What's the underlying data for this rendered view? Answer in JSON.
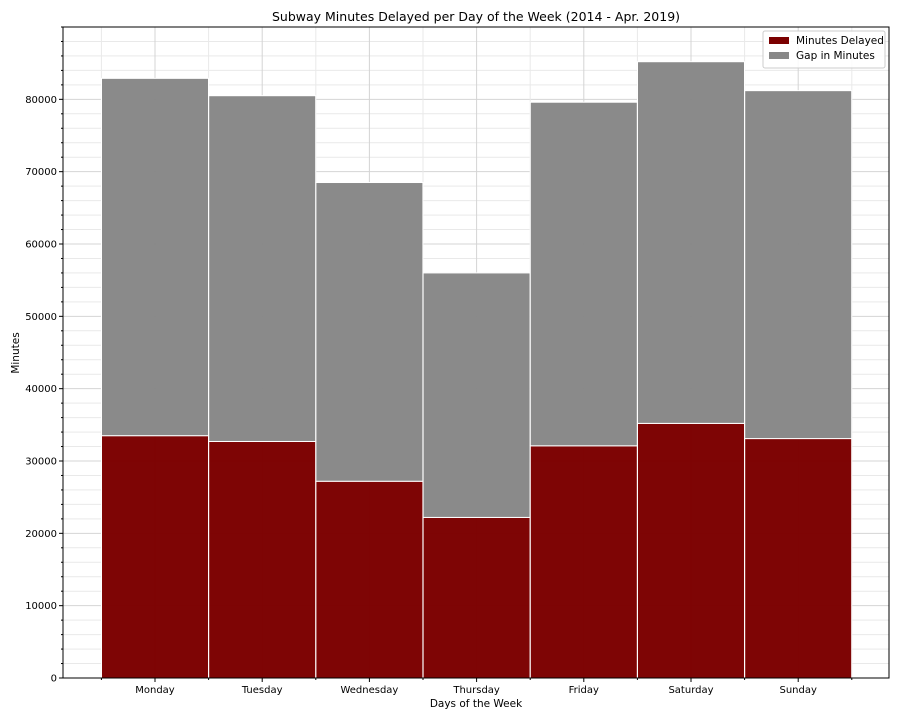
{
  "chart_data": {
    "type": "bar",
    "title": "Subway Minutes Delayed per Day of the Week (2014 - Apr. 2019)",
    "xlabel": "Days of the Week",
    "ylabel": "Minutes",
    "categories": [
      "Monday",
      "Tuesday",
      "Wednesday",
      "Thursday",
      "Friday",
      "Saturday",
      "Sunday"
    ],
    "stacked": true,
    "series": [
      {
        "name": "Minutes Delayed",
        "color": "#7b0000",
        "values": [
          33500,
          32700,
          27200,
          22200,
          32100,
          35200,
          33100
        ]
      },
      {
        "name": "Gap in Minutes",
        "color": "#888888",
        "values": [
          49400,
          47800,
          41300,
          33800,
          47500,
          50000,
          48100
        ]
      }
    ],
    "ylim": [
      0,
      90000
    ],
    "yticks": [
      0,
      10000,
      20000,
      30000,
      40000,
      50000,
      60000,
      70000,
      80000
    ],
    "grid": true,
    "legend_position": "top-right"
  }
}
